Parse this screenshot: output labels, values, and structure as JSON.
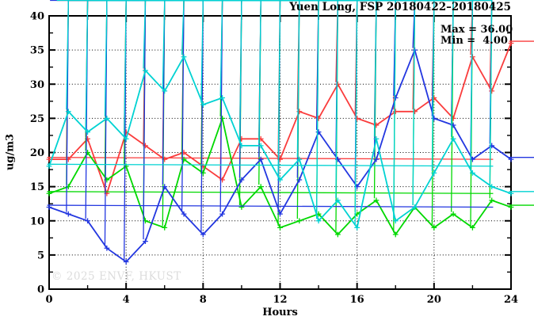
{
  "title": "Yuen Long, FSP 20180422–20180425",
  "stats": {
    "max_label": "Max = 36.00",
    "min_label": "Min =  4.00"
  },
  "watermark": "© 2025 ENVF, HKUST",
  "chart_data": {
    "type": "line",
    "title": "Yuen Long, FSP 20180422–20180425",
    "xlabel": "Hours",
    "ylabel": "ug/m3",
    "xlim": [
      0,
      24
    ],
    "ylim": [
      0,
      40
    ],
    "x_major_ticks": [
      0,
      4,
      8,
      12,
      16,
      20,
      24
    ],
    "x_minor_step": 2,
    "y_major_ticks": [
      0,
      5,
      10,
      15,
      20,
      25,
      30,
      35,
      40
    ],
    "y_minor_step": 2.5,
    "grid": {
      "style": "dotted",
      "color": "#000000",
      "x_lines": [
        4,
        8,
        12,
        16,
        20
      ],
      "y_lines": [
        5,
        10,
        15,
        20,
        25,
        30,
        35
      ]
    },
    "legend_position": "none",
    "annotations": [
      "Max = 36.00",
      "Min =  4.00"
    ],
    "x": [
      0,
      1,
      2,
      3,
      4,
      5,
      6,
      7,
      8,
      9,
      10,
      11,
      12,
      13,
      14,
      15,
      16,
      17,
      18,
      19,
      20,
      21,
      22,
      23,
      24
    ],
    "series": [
      {
        "name": "red",
        "color": "#fa3c3c",
        "values": [
          19,
          19,
          22,
          14,
          23,
          21,
          19,
          20,
          18,
          16,
          22,
          22,
          19,
          26,
          25,
          30,
          25,
          24,
          26,
          26,
          28,
          25,
          34,
          29,
          36
        ]
      },
      {
        "name": "green",
        "color": "#00d800",
        "values": [
          14,
          15,
          20,
          16,
          18,
          10,
          9,
          19,
          17,
          25,
          12,
          15,
          9,
          10,
          11,
          8,
          11,
          13,
          8,
          12,
          9,
          11,
          9,
          13,
          12
        ]
      },
      {
        "name": "blue",
        "color": "#2337e0",
        "values": [
          12,
          11,
          10,
          6,
          4,
          7,
          15,
          11,
          8,
          11,
          16,
          19,
          11,
          16,
          23,
          19,
          15,
          19,
          28,
          35,
          25,
          24,
          19,
          21,
          19
        ]
      },
      {
        "name": "cyan",
        "color": "#00d2d2",
        "values": [
          18,
          26,
          23,
          25,
          22,
          32,
          29,
          34,
          27,
          28,
          21,
          21,
          16,
          19,
          10,
          13,
          9,
          22,
          10,
          12,
          17,
          22,
          17,
          15,
          14
        ]
      }
    ]
  }
}
